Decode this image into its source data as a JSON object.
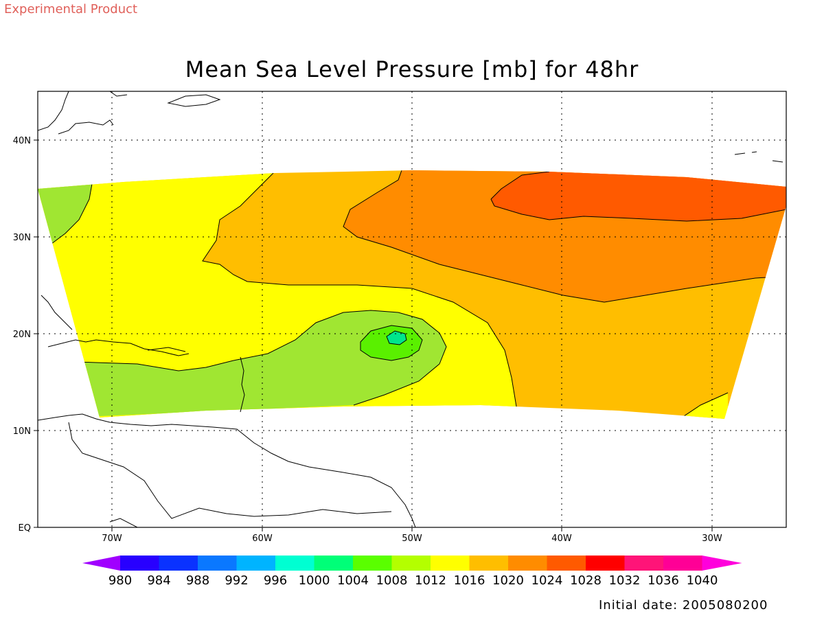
{
  "header": {
    "product_label": "Experimental Product",
    "title": "Mean Sea Level Pressure [mb] for 48hr"
  },
  "footer": {
    "initial_date": "Initial date: 2005080200"
  },
  "map": {
    "lat_ticks": [
      "EQ",
      "10N",
      "20N",
      "30N",
      "40N"
    ],
    "lon_ticks": [
      "70W",
      "60W",
      "50W",
      "40W",
      "30W"
    ],
    "contour_fill_colors": {
      "1008_1012": "#a0e632",
      "1012_1016": "#ffff00",
      "1016_1020": "#ffbe00",
      "1020_1024": "#ff8c00",
      "1024_1028": "#ff5a00",
      "1004_1008": "#5af000",
      "1000_1004": "#00e68c"
    }
  },
  "colorbar": {
    "labels": [
      "980",
      "984",
      "988",
      "992",
      "996",
      "1000",
      "1004",
      "1008",
      "1012",
      "1016",
      "1020",
      "1024",
      "1028",
      "1032",
      "1036",
      "1040"
    ],
    "colors": [
      "#a000ff",
      "#2800ff",
      "#0a32ff",
      "#0a78ff",
      "#00b4ff",
      "#00ffd2",
      "#00ff78",
      "#5aff00",
      "#b4ff00",
      "#ffff00",
      "#ffbe00",
      "#ff8c00",
      "#ff5a00",
      "#ff0000",
      "#ff1478",
      "#ff0096",
      "#ff00dc"
    ]
  }
}
